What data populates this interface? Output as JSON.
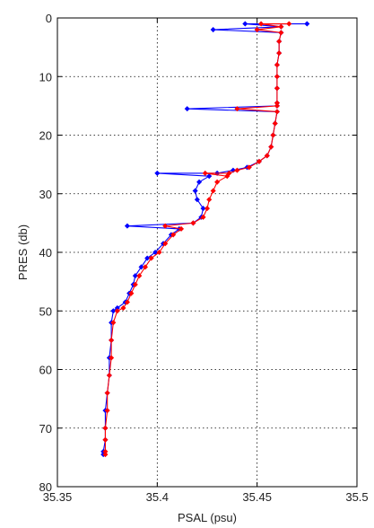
{
  "chart_data": {
    "type": "line",
    "title": "",
    "xlabel": "PSAL (psu)",
    "ylabel": "PRES (db)",
    "xlim": [
      35.35,
      35.5
    ],
    "ylim": [
      0,
      80
    ],
    "y_reversed": true,
    "grid": true,
    "legend": "none",
    "x_ticks": [
      35.35,
      35.4,
      35.45,
      35.5
    ],
    "x_tick_labels": [
      "35.35",
      "35.4",
      "35.45",
      "35.5"
    ],
    "y_ticks": [
      0,
      10,
      20,
      30,
      40,
      50,
      60,
      70,
      80
    ],
    "y_tick_labels": [
      "0",
      "10",
      "20",
      "30",
      "40",
      "50",
      "60",
      "70",
      "80"
    ],
    "series": [
      {
        "color": "#0000ff",
        "marker": "diamond",
        "points": [
          [
            35.475,
            1.0
          ],
          [
            35.444,
            1.0
          ],
          [
            35.462,
            1.5
          ],
          [
            35.428,
            2.0
          ],
          [
            35.462,
            2.5
          ],
          [
            35.461,
            4.0
          ],
          [
            35.461,
            6.0
          ],
          [
            35.46,
            8.0
          ],
          [
            35.46,
            10.0
          ],
          [
            35.46,
            12.0
          ],
          [
            35.46,
            14.5
          ],
          [
            35.46,
            15.0
          ],
          [
            35.415,
            15.5
          ],
          [
            35.46,
            16.0
          ],
          [
            35.459,
            18.0
          ],
          [
            35.458,
            20.0
          ],
          [
            35.457,
            22.0
          ],
          [
            35.455,
            23.5
          ],
          [
            35.451,
            24.5
          ],
          [
            35.445,
            25.5
          ],
          [
            35.438,
            26.0
          ],
          [
            35.43,
            26.5
          ],
          [
            35.4,
            26.5
          ],
          [
            35.426,
            27.0
          ],
          [
            35.421,
            28.0
          ],
          [
            35.419,
            29.5
          ],
          [
            35.42,
            31.0
          ],
          [
            35.423,
            32.5
          ],
          [
            35.422,
            34.0
          ],
          [
            35.418,
            35.0
          ],
          [
            35.385,
            35.5
          ],
          [
            35.411,
            36.0
          ],
          [
            35.407,
            37.0
          ],
          [
            35.403,
            38.5
          ],
          [
            35.399,
            40.0
          ],
          [
            35.395,
            41.0
          ],
          [
            35.392,
            42.5
          ],
          [
            35.389,
            44.0
          ],
          [
            35.388,
            45.5
          ],
          [
            35.386,
            47.0
          ],
          [
            35.384,
            48.5
          ],
          [
            35.38,
            49.5
          ],
          [
            35.378,
            50.0
          ],
          [
            35.377,
            52.0
          ],
          [
            35.377,
            55.0
          ],
          [
            35.376,
            58.0
          ],
          [
            35.376,
            61.0
          ],
          [
            35.375,
            64.0
          ],
          [
            35.374,
            67.0
          ],
          [
            35.374,
            70.0
          ],
          [
            35.374,
            72.0
          ],
          [
            35.373,
            74.0
          ],
          [
            35.373,
            74.5
          ]
        ]
      },
      {
        "color": "#ff0000",
        "marker": "diamond",
        "points": [
          [
            35.466,
            1.0
          ],
          [
            35.452,
            1.0
          ],
          [
            35.462,
            1.5
          ],
          [
            35.45,
            2.0
          ],
          [
            35.462,
            2.5
          ],
          [
            35.461,
            4.0
          ],
          [
            35.461,
            6.0
          ],
          [
            35.46,
            8.0
          ],
          [
            35.46,
            10.0
          ],
          [
            35.46,
            12.0
          ],
          [
            35.46,
            14.5
          ],
          [
            35.46,
            15.0
          ],
          [
            35.44,
            15.5
          ],
          [
            35.46,
            16.0
          ],
          [
            35.459,
            18.0
          ],
          [
            35.458,
            20.0
          ],
          [
            35.457,
            22.0
          ],
          [
            35.455,
            23.5
          ],
          [
            35.451,
            24.5
          ],
          [
            35.446,
            25.5
          ],
          [
            35.44,
            26.0
          ],
          [
            35.436,
            26.5
          ],
          [
            35.424,
            26.5
          ],
          [
            35.435,
            27.0
          ],
          [
            35.43,
            28.0
          ],
          [
            35.428,
            29.5
          ],
          [
            35.426,
            31.0
          ],
          [
            35.425,
            32.5
          ],
          [
            35.423,
            34.0
          ],
          [
            35.418,
            35.0
          ],
          [
            35.404,
            35.5
          ],
          [
            35.412,
            36.0
          ],
          [
            35.408,
            37.0
          ],
          [
            35.404,
            38.5
          ],
          [
            35.401,
            40.0
          ],
          [
            35.397,
            41.0
          ],
          [
            35.394,
            42.5
          ],
          [
            35.391,
            44.0
          ],
          [
            35.389,
            45.5
          ],
          [
            35.387,
            47.0
          ],
          [
            35.385,
            48.5
          ],
          [
            35.383,
            49.5
          ],
          [
            35.38,
            50.0
          ],
          [
            35.378,
            52.0
          ],
          [
            35.377,
            55.0
          ],
          [
            35.377,
            58.0
          ],
          [
            35.376,
            61.0
          ],
          [
            35.375,
            64.0
          ],
          [
            35.375,
            67.0
          ],
          [
            35.374,
            70.0
          ],
          [
            35.374,
            72.0
          ],
          [
            35.374,
            74.0
          ],
          [
            35.374,
            74.5
          ]
        ]
      }
    ]
  }
}
